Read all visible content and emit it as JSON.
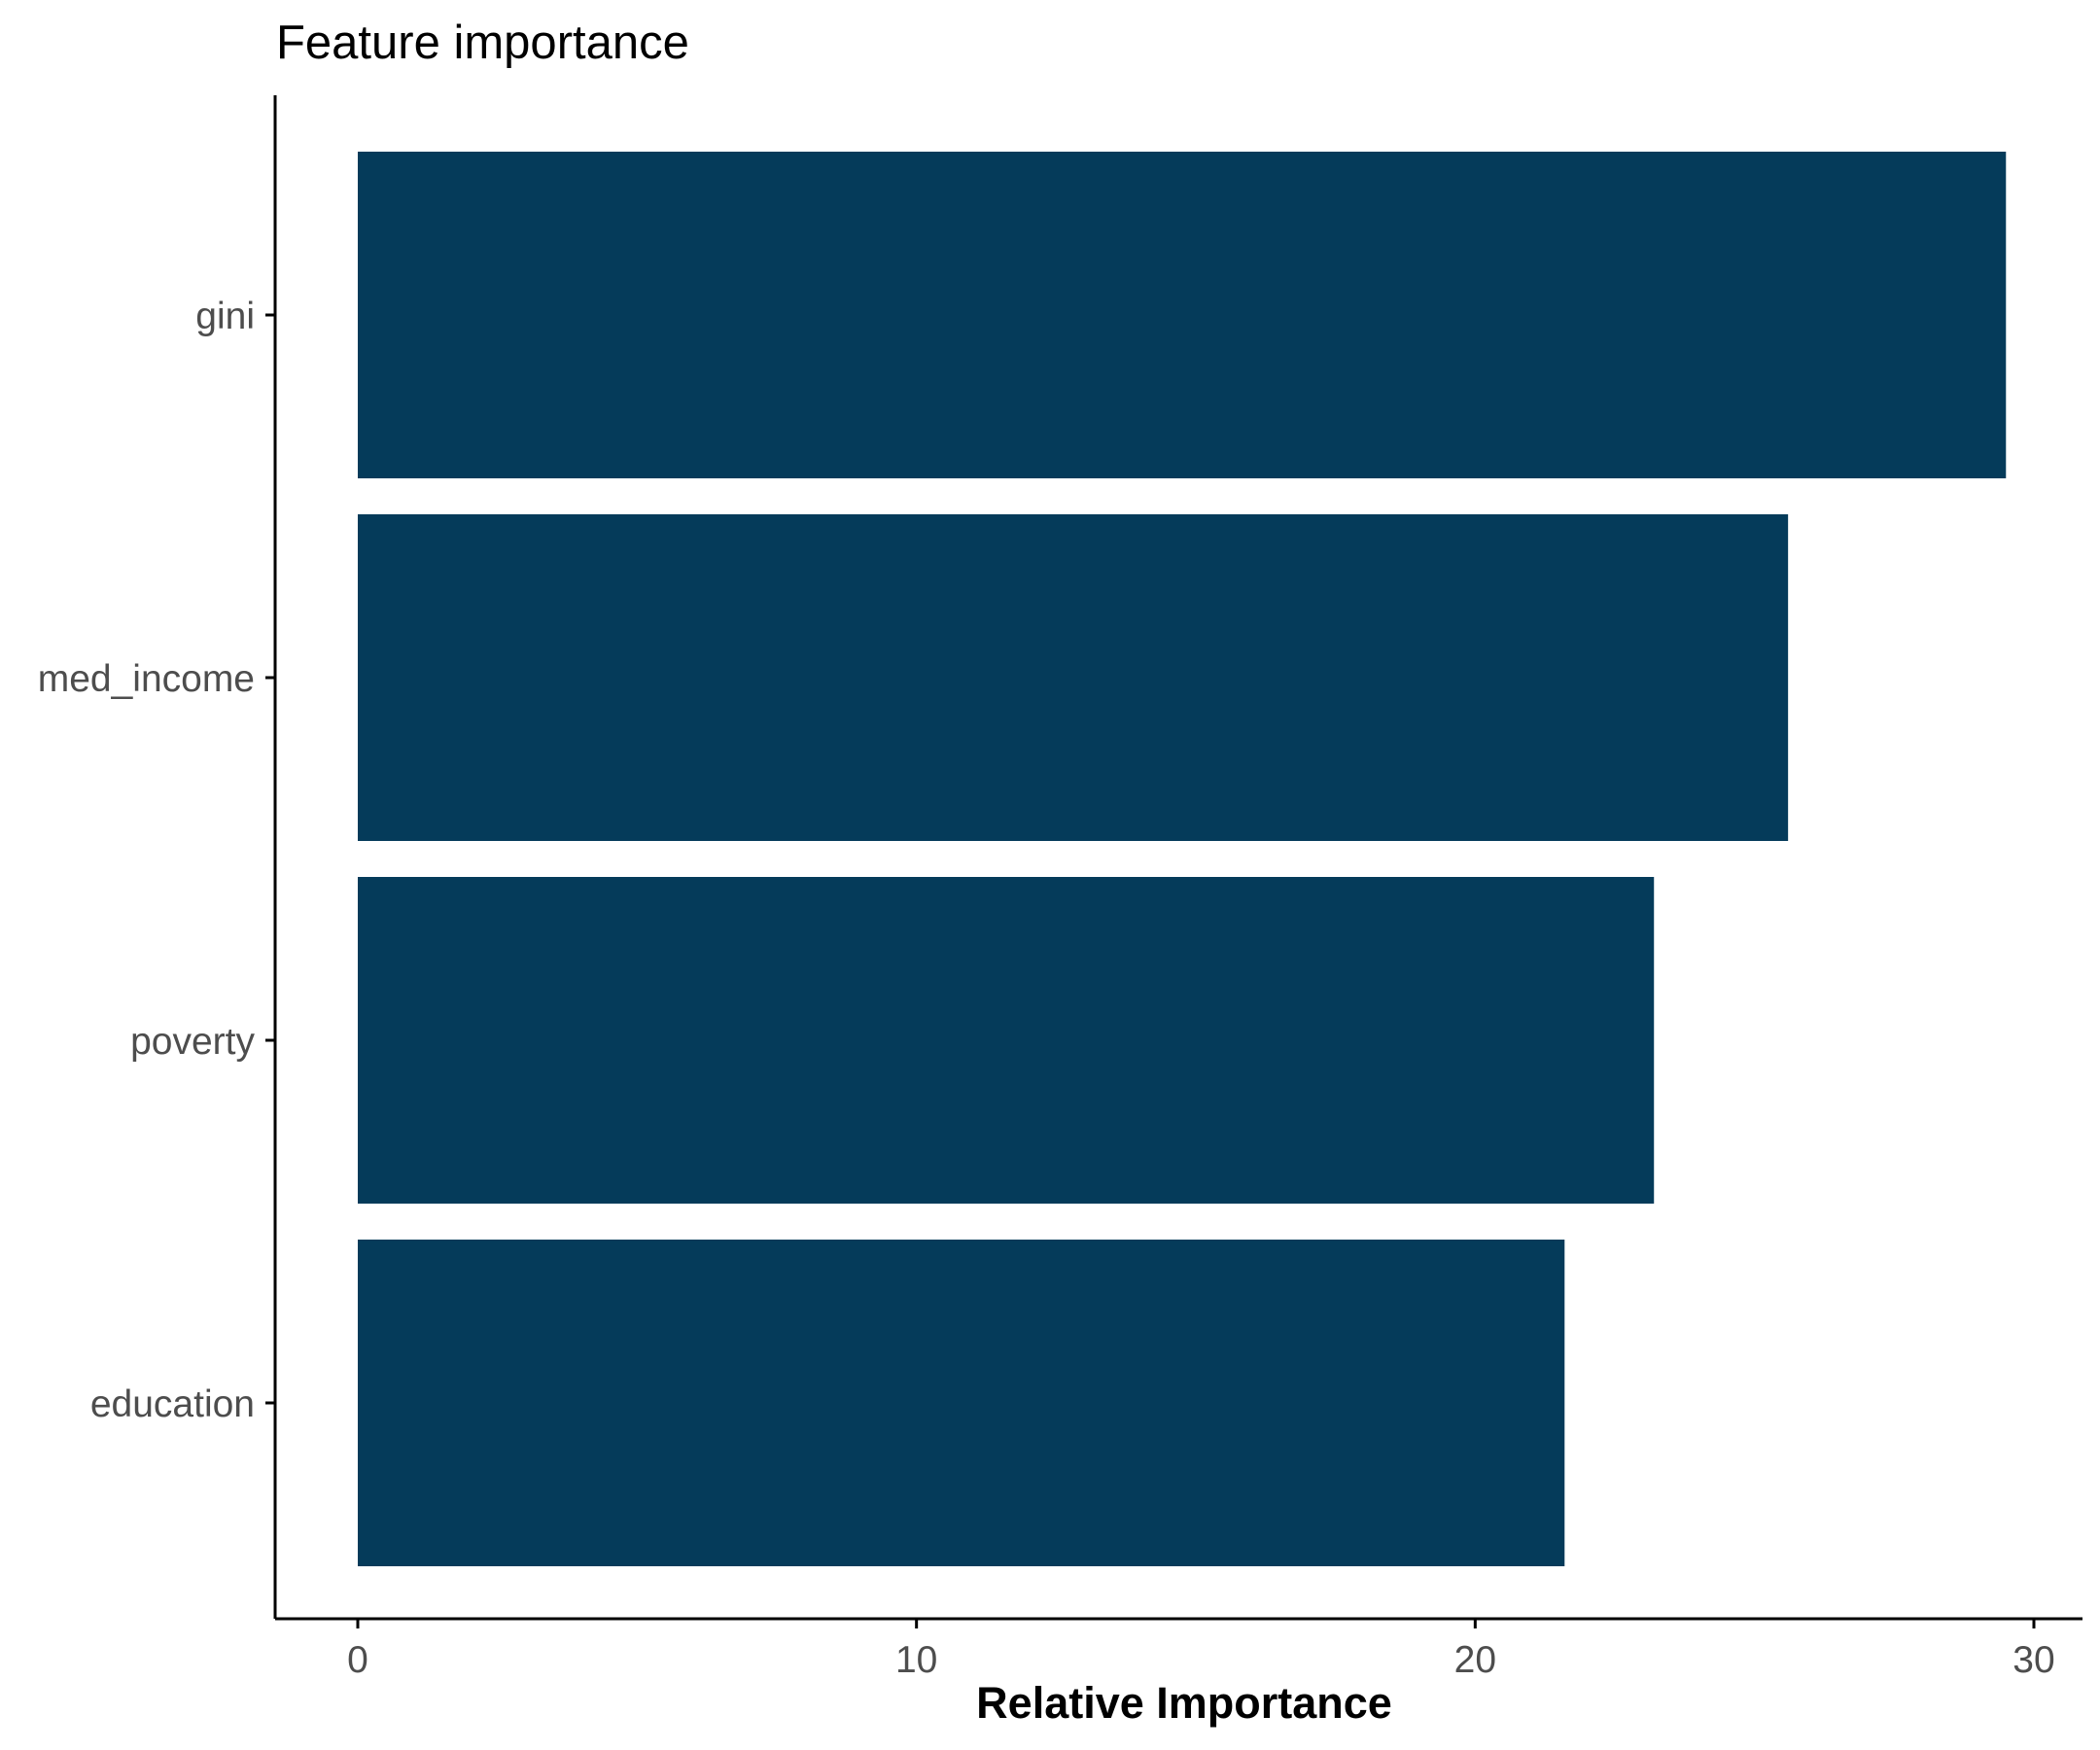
{
  "chart_data": {
    "type": "bar",
    "orientation": "horizontal",
    "title": "Feature importance",
    "xlabel": "Relative Importance",
    "ylabel": "",
    "categories": [
      "gini",
      "med_income",
      "poverty",
      "education"
    ],
    "values": [
      29.5,
      25.6,
      23.2,
      21.6
    ],
    "xlim": [
      0,
      30
    ],
    "xticks": [
      0,
      10,
      20,
      30
    ],
    "bar_color": "#053b5a",
    "grid": false,
    "legend": "none"
  }
}
